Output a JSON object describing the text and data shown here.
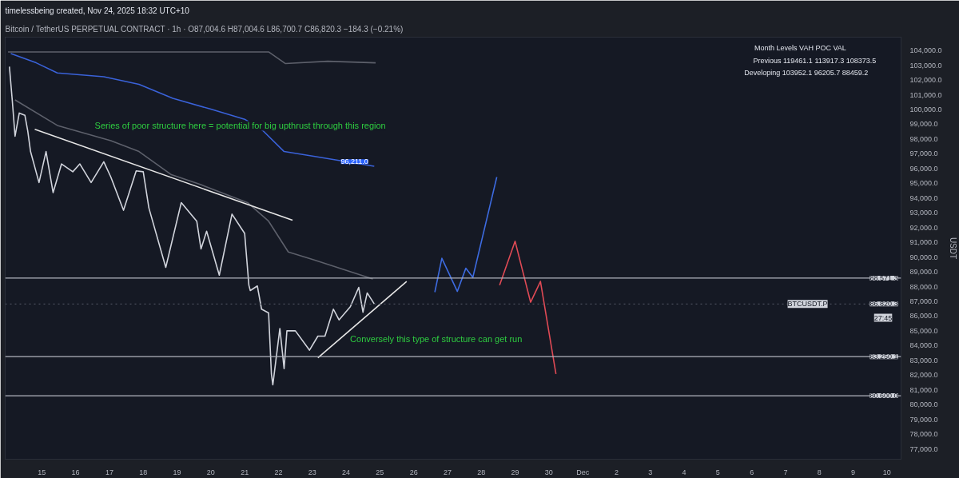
{
  "chart_data": {
    "type": "line",
    "title": "Bitcoin / TetherUS PERPETUAL CONTRACT · 1h · O87,004.6 H87,004.6 L86,700.7 C86,820.3 −184.3 (−0.21%)",
    "subtitle": "timelessbeing created, Nov 24, 2025 18:32 UTC+10",
    "ylabel": "USDT",
    "xlim": [
      "2025-11-13T22:00",
      "2025-12-10T10:00"
    ],
    "ylim": [
      76300,
      104900
    ],
    "xticks": [
      {
        "value": "2025-11-15",
        "label": "15"
      },
      {
        "value": "2025-11-16",
        "label": "16"
      },
      {
        "value": "2025-11-17",
        "label": "17"
      },
      {
        "value": "2025-11-18",
        "label": "18"
      },
      {
        "value": "2025-11-19",
        "label": "19"
      },
      {
        "value": "2025-11-20",
        "label": "20"
      },
      {
        "value": "2025-11-21",
        "label": "21"
      },
      {
        "value": "2025-11-22",
        "label": "22"
      },
      {
        "value": "2025-11-23",
        "label": "23"
      },
      {
        "value": "2025-11-24",
        "label": "24"
      },
      {
        "value": "2025-11-25",
        "label": "25"
      },
      {
        "value": "2025-11-26",
        "label": "26"
      },
      {
        "value": "2025-11-27",
        "label": "27"
      },
      {
        "value": "2025-11-28",
        "label": "28"
      },
      {
        "value": "2025-11-29",
        "label": "29"
      },
      {
        "value": "2025-11-30",
        "label": "30"
      },
      {
        "value": "2025-12-01",
        "label": "Dec"
      },
      {
        "value": "2025-12-02",
        "label": "2"
      },
      {
        "value": "2025-12-03",
        "label": "3"
      },
      {
        "value": "2025-12-04",
        "label": "4"
      },
      {
        "value": "2025-12-05",
        "label": "5"
      },
      {
        "value": "2025-12-06",
        "label": "6"
      },
      {
        "value": "2025-12-07",
        "label": "7"
      },
      {
        "value": "2025-12-08",
        "label": "8"
      },
      {
        "value": "2025-12-09",
        "label": "9"
      },
      {
        "value": "2025-12-10",
        "label": "10"
      }
    ],
    "yticks": [
      {
        "value": 77000,
        "label": "77,000.0"
      },
      {
        "value": 78000,
        "label": "78,000.0"
      },
      {
        "value": 79000,
        "label": "79,000.0"
      },
      {
        "value": 80000,
        "label": "80,000.0"
      },
      {
        "value": 81000,
        "label": "81,000.0"
      },
      {
        "value": 82000,
        "label": "82,000.0"
      },
      {
        "value": 83000,
        "label": "83,000.0"
      },
      {
        "value": 84000,
        "label": "84,000.0"
      },
      {
        "value": 85000,
        "label": "85,000.0"
      },
      {
        "value": 86000,
        "label": "86,000.0"
      },
      {
        "value": 87000,
        "label": "87,000.0"
      },
      {
        "value": 88000,
        "label": "88,000.0"
      },
      {
        "value": 89000,
        "label": "89,000.0"
      },
      {
        "value": 90000,
        "label": "90,000.0"
      },
      {
        "value": 91000,
        "label": "91,000.0"
      },
      {
        "value": 92000,
        "label": "92,000.0"
      },
      {
        "value": 93000,
        "label": "93,000.0"
      },
      {
        "value": 94000,
        "label": "94,000.0"
      },
      {
        "value": 95000,
        "label": "95,000.0"
      },
      {
        "value": 96000,
        "label": "96,000.0"
      },
      {
        "value": 97000,
        "label": "97,000.0"
      },
      {
        "value": 98000,
        "label": "98,000.0"
      },
      {
        "value": 99000,
        "label": "99,000.0"
      },
      {
        "value": 100000,
        "label": "100,000.0"
      },
      {
        "value": 101000,
        "label": "101,000.0"
      },
      {
        "value": 102000,
        "label": "102,000.0"
      },
      {
        "value": 103000,
        "label": "103,000.0"
      },
      {
        "value": 104000,
        "label": "104,000.0"
      }
    ],
    "series": [
      {
        "color": "#d1d4dc",
        "x": [
          "2025-11-14T01:00",
          "2025-11-14T03:00",
          "2025-11-14T05:00",
          "2025-11-14T08:00",
          "2025-11-14T12:00",
          "2025-11-14T14:00",
          "2025-11-14T16:00",
          "2025-11-14T22:00",
          "2025-11-15T03:00",
          "2025-11-15T08:00",
          "2025-11-15T14:00",
          "2025-11-15T22:00",
          "2025-11-16T03:00",
          "2025-11-16T11:00",
          "2025-11-16T20:00",
          "2025-11-17T01:00",
          "2025-11-17T10:00",
          "2025-11-17T19:00",
          "2025-11-18T00:00",
          "2025-11-18T04:00",
          "2025-11-18T16:00",
          "2025-11-19T03:00",
          "2025-11-19T14:00",
          "2025-11-19T17:00",
          "2025-11-19T21:00",
          "2025-11-20T06:00",
          "2025-11-20T15:00",
          "2025-11-21T00:00",
          "2025-11-21T03:00",
          "2025-11-21T04:00",
          "2025-11-21T09:00",
          "2025-11-21T12:00",
          "2025-11-21T17:00",
          "2025-11-21T19:00",
          "2025-11-21T20:00",
          "2025-11-22T01:00",
          "2025-11-22T04:00",
          "2025-11-22T06:00",
          "2025-11-22T12:00",
          "2025-11-22T22:00",
          "2025-11-23T04:00",
          "2025-11-23T09:00",
          "2025-11-23T15:00",
          "2025-11-23T19:00",
          "2025-11-24T03:00",
          "2025-11-24T09:00",
          "2025-11-24T12:00",
          "2025-11-24T15:00",
          "2025-11-24T20:00"
        ],
        "values": [
          102900,
          100650,
          98190,
          99760,
          99600,
          98560,
          97150,
          95050,
          97150,
          94370,
          96310,
          95780,
          96310,
          95050,
          96460,
          95420,
          93170,
          95840,
          95780,
          93330,
          89300,
          93690,
          92430,
          90550,
          91750,
          88770,
          92910,
          91600,
          88090,
          87730,
          88040,
          86470,
          86210,
          82070,
          81340,
          85160,
          82440,
          85000,
          85000,
          83690,
          84640,
          84640,
          86470,
          85740,
          86630,
          87940,
          86260,
          87570,
          86830
        ]
      },
      {
        "color": "#3a62d9",
        "x": [
          "2025-11-14T02:00",
          "2025-11-14T20:00",
          "2025-11-15T11:00",
          "2025-11-16T20:00",
          "2025-11-17T21:00",
          "2025-11-18T21:00",
          "2025-11-20T00:00",
          "2025-11-21T00:00",
          "2025-11-21T13:00",
          "2025-11-22T04:00",
          "2025-11-23T01:00",
          "2025-11-24T20:00"
        ],
        "values": [
          103790,
          103160,
          102480,
          102220,
          101700,
          100760,
          100020,
          99340,
          98560,
          97150,
          96830,
          96150
        ]
      },
      {
        "color": "#5d606b",
        "x": [
          "2025-11-14T05:00",
          "2025-11-15T11:00",
          "2025-11-17T01:00",
          "2025-11-17T21:00",
          "2025-11-18T20:00",
          "2025-11-19T17:00",
          "2025-11-21T02:00",
          "2025-11-21T17:00",
          "2025-11-22T07:00",
          "2025-11-23T01:00",
          "2025-11-24T19:00"
        ],
        "values": [
          100650,
          98920,
          97880,
          97150,
          95580,
          94900,
          93690,
          92430,
          90340,
          89820,
          88510
        ]
      },
      {
        "color": "#5d606b",
        "x": [
          "2025-11-14T00:00",
          "2025-11-21T17:00",
          "2025-11-22T05:00",
          "2025-11-23T11:00",
          "2025-11-24T21:00"
        ],
        "values": [
          103900,
          103900,
          103110,
          103270,
          103160
        ]
      },
      {
        "color": "#e6e6e6",
        "x": [
          "2025-11-14T19:00",
          "2025-11-22T10:00"
        ],
        "values": [
          98660,
          92490
        ]
      },
      {
        "color": "#e6e6e6",
        "x": [
          "2025-11-23T04:00",
          "2025-11-25T19:00"
        ],
        "values": [
          83170,
          88350
        ]
      },
      {
        "color": "#3d6be0",
        "x": [
          "2025-11-26T15:00",
          "2025-11-26T20:00",
          "2025-11-27T07:00",
          "2025-11-27T13:00",
          "2025-11-27T18:00",
          "2025-11-28T11:00"
        ],
        "values": [
          87620,
          89920,
          87670,
          89240,
          88620,
          95420
        ]
      },
      {
        "color": "#e04a55",
        "x": [
          "2025-11-28T13:00",
          "2025-11-29T00:00",
          "2025-11-29T11:00",
          "2025-11-29T18:00",
          "2025-11-30T05:00"
        ],
        "values": [
          88090,
          91070,
          86940,
          88350,
          82070
        ]
      }
    ],
    "ref_lines": [
      {
        "axis": "y",
        "value": 88571.3,
        "label": "88,571.3",
        "color": "#b2b5be"
      },
      {
        "axis": "y",
        "value": 86820.3,
        "label": "86,820.3",
        "color": "#4a4e5a",
        "line_style": "dotted"
      },
      {
        "axis": "y",
        "value": 83250.1,
        "label": "83,250.1",
        "color": "#b2b5be"
      },
      {
        "axis": "y",
        "value": 80600.0,
        "label": "80,600.0",
        "color": "#b2b5be"
      }
    ],
    "annotations": [
      "Series of poor structure here = potential for big upthrust through this region",
      "Conversely this type of structure can get run",
      "Month Levels      VAH          POC          VAL",
      "Previous     119461.1   113917.3   108373.5",
      "Developing     103952.1     96205.7     88459.2",
      "BTCUSDT.P",
      "27:45",
      "96,211.0"
    ]
  }
}
